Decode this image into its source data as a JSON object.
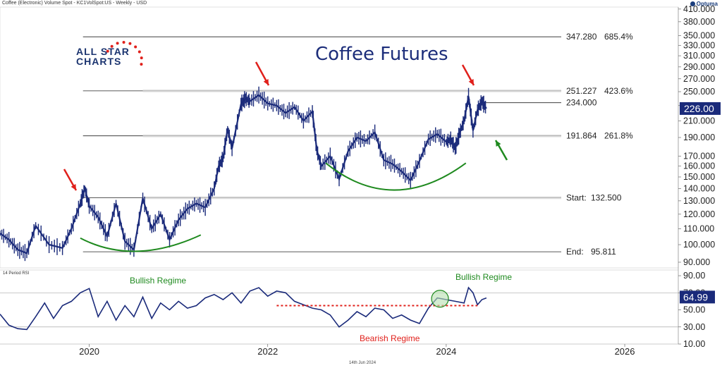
{
  "header": {
    "instrument": "Coffee (Electronic) Volume Spot - KC1VolSpot:US - Weekly - USD",
    "brand": "Optuma"
  },
  "logo": {
    "line1": "ALL STAR",
    "line2": "CHARTS"
  },
  "colors": {
    "price": "#1a2a7a",
    "red": "#e0201b",
    "green": "#1f8a1f",
    "highlight": "#1a2a7a"
  },
  "chart_data": [
    {
      "type": "line",
      "title": "Coffee Futures",
      "scale": "log",
      "ylim": [
        87,
        415
      ],
      "y_ticks": [
        90,
        100,
        110,
        120,
        130,
        140,
        150,
        160,
        170,
        190,
        210,
        230,
        250,
        270,
        290,
        310,
        330,
        350,
        380,
        410
      ],
      "y_tick_labels": [
        "90.000",
        "100.000",
        "110.000",
        "120.000",
        "130.000",
        "140.000",
        "150.000",
        "160.000",
        "170.000",
        "190.000",
        "210.000",
        "230.000",
        "250.000",
        "270.000",
        "290.000",
        "310.000",
        "330.000",
        "350.000",
        "380.000",
        "410.000"
      ],
      "x_range": [
        2019.0,
        2026.6
      ],
      "x_ticks": [
        2020,
        2022,
        2024,
        2026
      ],
      "x_tick_labels": [
        "2020",
        "2022",
        "2024",
        "2026"
      ],
      "series": [
        {
          "x": [
            2019.0,
            2019.1,
            2019.2,
            2019.3,
            2019.4,
            2019.55,
            2019.7,
            2019.8,
            2019.9,
            2019.95,
            2020.0,
            2020.1,
            2020.2,
            2020.3,
            2020.4,
            2020.5,
            2020.6,
            2020.7,
            2020.8,
            2020.9,
            2021.0,
            2021.1,
            2021.2,
            2021.3,
            2021.4,
            2021.45,
            2021.5,
            2021.55,
            2021.6,
            2021.7,
            2021.75,
            2021.8,
            2021.9,
            2022.0,
            2022.1,
            2022.2,
            2022.3,
            2022.4,
            2022.5,
            2022.55,
            2022.6,
            2022.7,
            2022.8,
            2022.9,
            2023.0,
            2023.1,
            2023.2,
            2023.3,
            2023.4,
            2023.5,
            2023.6,
            2023.7,
            2023.8,
            2023.9,
            2024.0,
            2024.05,
            2024.1,
            2024.15,
            2024.2,
            2024.25,
            2024.3,
            2024.35,
            2024.4,
            2024.45
          ],
          "y": [
            107,
            103,
            97,
            95,
            112,
            100,
            98,
            110,
            128,
            140,
            126,
            118,
            105,
            128,
            102,
            97,
            132,
            110,
            120,
            103,
            116,
            124,
            128,
            125,
            140,
            160,
            168,
            200,
            178,
            232,
            240,
            236,
            245,
            233,
            230,
            220,
            228,
            210,
            222,
            176,
            160,
            170,
            148,
            175,
            190,
            186,
            196,
            166,
            162,
            155,
            147,
            165,
            188,
            194,
            185,
            188,
            178,
            195,
            210,
            243,
            198,
            224,
            236,
            226
          ],
          "last": "226.00"
        }
      ],
      "levels": [
        {
          "value": 347.28,
          "label": "347.280",
          "pct": "685.4%"
        },
        {
          "value": 251.227,
          "label": "251.227",
          "pct": "423.6%"
        },
        {
          "value": 234.0,
          "label": "234.000",
          "pct": ""
        },
        {
          "value": 191.864,
          "label": "191.864",
          "pct": "261.8%"
        },
        {
          "value": 132.5,
          "label": "Start:",
          "pct": "132.500"
        },
        {
          "value": 95.811,
          "label": "End:",
          "pct": "95.811"
        }
      ]
    },
    {
      "type": "line",
      "title": "14 Period RSI",
      "ylim": [
        10,
        95
      ],
      "y_ticks": [
        10,
        30,
        50,
        70,
        90
      ],
      "y_tick_labels": [
        "10.00",
        "30.00",
        "50.00",
        "70.00",
        "90.00"
      ],
      "reference_lines": [
        70,
        30
      ],
      "series": [
        {
          "x": [
            2019.0,
            2019.1,
            2019.2,
            2019.3,
            2019.4,
            2019.5,
            2019.6,
            2019.7,
            2019.8,
            2019.9,
            2020.0,
            2020.1,
            2020.2,
            2020.3,
            2020.4,
            2020.5,
            2020.6,
            2020.7,
            2020.8,
            2020.9,
            2021.0,
            2021.1,
            2021.2,
            2021.3,
            2021.4,
            2021.5,
            2021.6,
            2021.7,
            2021.8,
            2021.9,
            2022.0,
            2022.1,
            2022.2,
            2022.3,
            2022.4,
            2022.5,
            2022.6,
            2022.7,
            2022.8,
            2022.9,
            2023.0,
            2023.1,
            2023.2,
            2023.3,
            2023.4,
            2023.5,
            2023.6,
            2023.7,
            2023.8,
            2023.9,
            2024.0,
            2024.1,
            2024.2,
            2024.25,
            2024.3,
            2024.35,
            2024.4,
            2024.45
          ],
          "y": [
            45,
            32,
            28,
            27,
            42,
            58,
            40,
            55,
            60,
            70,
            75,
            42,
            60,
            38,
            55,
            42,
            65,
            40,
            58,
            50,
            60,
            52,
            55,
            64,
            68,
            62,
            70,
            58,
            72,
            76,
            66,
            72,
            70,
            60,
            56,
            52,
            50,
            44,
            30,
            38,
            48,
            42,
            52,
            50,
            40,
            44,
            38,
            34,
            52,
            64,
            62,
            60,
            58,
            76,
            70,
            56,
            62,
            64
          ],
          "last": "64.99"
        }
      ],
      "annotations": {
        "bullish_1": "Bullish Regime",
        "bullish_2": "Bullish Regime",
        "bearish": "Bearish Regime"
      }
    }
  ],
  "footer": {
    "date": "14th Jun 2024"
  }
}
